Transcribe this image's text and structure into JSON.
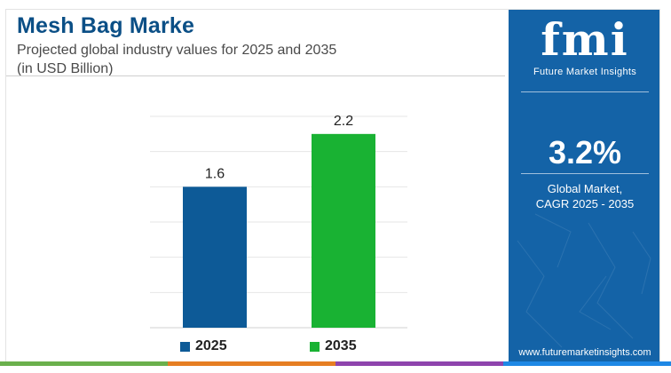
{
  "header": {
    "title": "Mesh Bag Marke",
    "subtitle_line1": "Projected global industry values for 2025 and 2035",
    "subtitle_line2": "(in USD Billion)"
  },
  "chart_data": {
    "type": "bar",
    "categories": [
      "2025",
      "2035"
    ],
    "values": [
      1.6,
      2.2
    ],
    "value_labels": [
      "1.6",
      "2.2"
    ],
    "colors": [
      "#0d5a97",
      "#19b233"
    ],
    "ylim": [
      0,
      2.4
    ],
    "grid": true,
    "legend": {
      "placement": "bottom",
      "entries": [
        {
          "label": "2025",
          "color": "#0d5a97"
        },
        {
          "label": "2035",
          "color": "#19b233"
        }
      ]
    }
  },
  "panel": {
    "logo_mark": "fmi",
    "logo_text": "Future Market Insights",
    "cagr_value": "3.2%",
    "cagr_label_line1": "Global Market,",
    "cagr_label_line2": "CAGR 2025 - 2035",
    "website": "www.futuremarketinsights.com",
    "background": "#1463a7"
  },
  "footer_colors": [
    "#6ab04c",
    "#e67e22",
    "#8e44ad",
    "#1e88e5"
  ]
}
